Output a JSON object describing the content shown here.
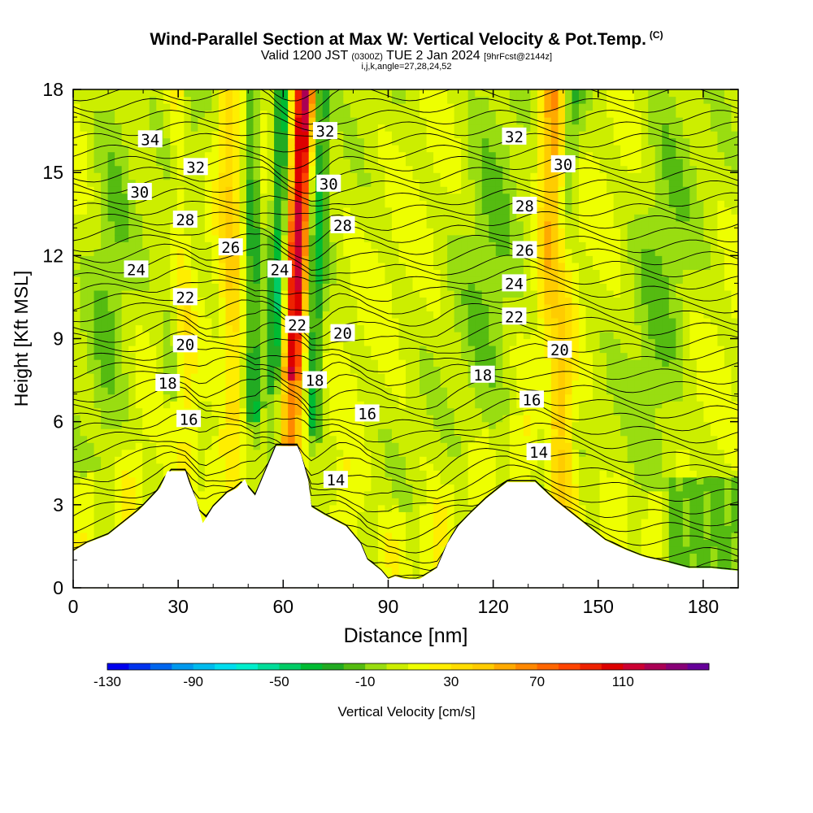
{
  "header": {
    "title": "Wind-Parallel Section at Max W: Vertical Velocity & Pot.Temp.",
    "copyright": "(C)",
    "valid_prefix": "Valid 1200 JST",
    "valid_utc": "(0300Z)",
    "valid_date": "TUE 2 Jan 2024",
    "forecast": "[9hrFcst@2144z]",
    "indices": "i,j,k,angle=27,28,24,52"
  },
  "chart_data": {
    "type": "heatmap",
    "xlabel": "Distance [nm]",
    "ylabel": "Height [Kft MSL]",
    "xlim": [
      0,
      190
    ],
    "ylim": [
      0,
      18
    ],
    "x_ticks": [
      "0",
      "30",
      "60",
      "90",
      "120",
      "150",
      "180"
    ],
    "y_ticks": [
      "0",
      "3",
      "6",
      "9",
      "12",
      "15",
      "18"
    ],
    "colorbar": {
      "label": "Vertical Velocity [cm/s]",
      "tick_labels": [
        "-130",
        "-90",
        "-50",
        "-10",
        "30",
        "70",
        "110"
      ],
      "levels": [
        -130,
        -120,
        -110,
        -100,
        -90,
        -80,
        -70,
        -60,
        -50,
        -40,
        -30,
        -20,
        -10,
        0,
        10,
        20,
        30,
        40,
        50,
        60,
        70,
        80,
        90,
        100,
        110,
        120,
        130,
        140
      ],
      "colors": [
        "#0000ee",
        "#0033ee",
        "#0066ee",
        "#0099ee",
        "#00bbee",
        "#00ddee",
        "#00eecc",
        "#00dd99",
        "#00cc66",
        "#00bb33",
        "#22aa22",
        "#55bb11",
        "#99dd11",
        "#ccee00",
        "#eeff00",
        "#ffee00",
        "#ffdd00",
        "#ffcc00",
        "#ffaa00",
        "#ff8800",
        "#ff6600",
        "#ff4400",
        "#ee2200",
        "#dd0000",
        "#cc0033",
        "#aa0055",
        "#880077",
        "#660099"
      ]
    },
    "terrain_kft": [
      [
        0,
        1.3
      ],
      [
        4,
        1.6
      ],
      [
        10,
        1.9
      ],
      [
        13,
        2.2
      ],
      [
        16,
        2.5
      ],
      [
        19,
        2.8
      ],
      [
        22,
        3.2
      ],
      [
        25,
        3.6
      ],
      [
        27,
        4.2
      ],
      [
        32,
        4.2
      ],
      [
        33,
        3.8
      ],
      [
        35,
        3.2
      ],
      [
        37,
        2.3
      ],
      [
        40,
        2.9
      ],
      [
        44,
        3.4
      ],
      [
        47,
        3.6
      ],
      [
        49,
        3.9
      ],
      [
        50,
        3.6
      ],
      [
        52,
        3.3
      ],
      [
        55,
        4.2
      ],
      [
        58,
        5.1
      ],
      [
        64,
        5.1
      ],
      [
        65,
        4.8
      ],
      [
        67,
        3.9
      ],
      [
        68,
        2.9
      ],
      [
        72,
        2.6
      ],
      [
        78,
        2.2
      ],
      [
        82,
        1.6
      ],
      [
        84,
        1.0
      ],
      [
        88,
        0.6
      ],
      [
        90,
        0.3
      ],
      [
        92,
        0.4
      ],
      [
        95,
        0.3
      ],
      [
        99,
        0.3
      ],
      [
        104,
        0.7
      ],
      [
        107,
        1.6
      ],
      [
        110,
        2.2
      ],
      [
        113,
        2.6
      ],
      [
        118,
        3.2
      ],
      [
        122,
        3.6
      ],
      [
        124,
        3.8
      ],
      [
        126,
        3.8
      ],
      [
        132,
        3.8
      ],
      [
        137,
        3.2
      ],
      [
        141,
        2.8
      ],
      [
        146,
        2.3
      ],
      [
        152,
        1.7
      ],
      [
        157,
        1.4
      ],
      [
        163,
        1.1
      ],
      [
        170,
        0.9
      ],
      [
        176,
        0.7
      ],
      [
        182,
        0.7
      ],
      [
        190,
        0.6
      ]
    ],
    "theta_contour_labels": [
      {
        "text": "34",
        "x": 22,
        "y": 16.2
      },
      {
        "text": "32",
        "x": 35,
        "y": 15.2
      },
      {
        "text": "30",
        "x": 19,
        "y": 14.3
      },
      {
        "text": "28",
        "x": 32,
        "y": 13.3
      },
      {
        "text": "26",
        "x": 45,
        "y": 12.3
      },
      {
        "text": "24",
        "x": 18,
        "y": 11.5
      },
      {
        "text": "22",
        "x": 32,
        "y": 10.5
      },
      {
        "text": "20",
        "x": 32,
        "y": 8.8
      },
      {
        "text": "18",
        "x": 27,
        "y": 7.4
      },
      {
        "text": "16",
        "x": 33,
        "y": 6.1
      },
      {
        "text": "32",
        "x": 72,
        "y": 16.5
      },
      {
        "text": "30",
        "x": 73,
        "y": 14.6
      },
      {
        "text": "28",
        "x": 77,
        "y": 13.1
      },
      {
        "text": "24",
        "x": 59,
        "y": 11.5
      },
      {
        "text": "22",
        "x": 64,
        "y": 9.5
      },
      {
        "text": "20",
        "x": 77,
        "y": 9.2
      },
      {
        "text": "18",
        "x": 69,
        "y": 7.5
      },
      {
        "text": "16",
        "x": 84,
        "y": 6.3
      },
      {
        "text": "14",
        "x": 75,
        "y": 3.9
      },
      {
        "text": "32",
        "x": 126,
        "y": 16.3
      },
      {
        "text": "30",
        "x": 140,
        "y": 15.3
      },
      {
        "text": "28",
        "x": 129,
        "y": 13.8
      },
      {
        "text": "26",
        "x": 129,
        "y": 12.2
      },
      {
        "text": "24",
        "x": 126,
        "y": 11.0
      },
      {
        "text": "22",
        "x": 126,
        "y": 9.8
      },
      {
        "text": "20",
        "x": 139,
        "y": 8.6
      },
      {
        "text": "18",
        "x": 117,
        "y": 7.7
      },
      {
        "text": "16",
        "x": 131,
        "y": 6.8
      },
      {
        "text": "14",
        "x": 133,
        "y": 4.9
      }
    ],
    "updraft_bands": [
      {
        "x_base": 60,
        "x_top": 66,
        "width": 3,
        "w": 110
      },
      {
        "x_base": 56,
        "x_top": 60,
        "width": 2.5,
        "w": -45
      },
      {
        "x_base": 67,
        "x_top": 71,
        "width": 2.5,
        "w": -40
      },
      {
        "x_base": 139,
        "x_top": 137,
        "width": 4,
        "w": 55
      },
      {
        "x_base": 132,
        "x_top": 143,
        "width": 3,
        "w": -30
      },
      {
        "x_base": 28,
        "x_top": 32,
        "width": 4,
        "w": -25
      },
      {
        "x_base": 33,
        "x_top": 30,
        "width": 3,
        "w": 35
      },
      {
        "x_base": 47,
        "x_top": 44,
        "width": 3,
        "w": 30
      },
      {
        "x_base": 52,
        "x_top": 51,
        "width": 2,
        "w": -35
      },
      {
        "x_base": 118,
        "x_top": 119,
        "width": 8,
        "w": -15
      },
      {
        "x_base": 165,
        "x_top": 170,
        "width": 8,
        "w": -15
      },
      {
        "x_base": 8,
        "x_top": 12,
        "width": 6,
        "w": -15
      }
    ]
  }
}
